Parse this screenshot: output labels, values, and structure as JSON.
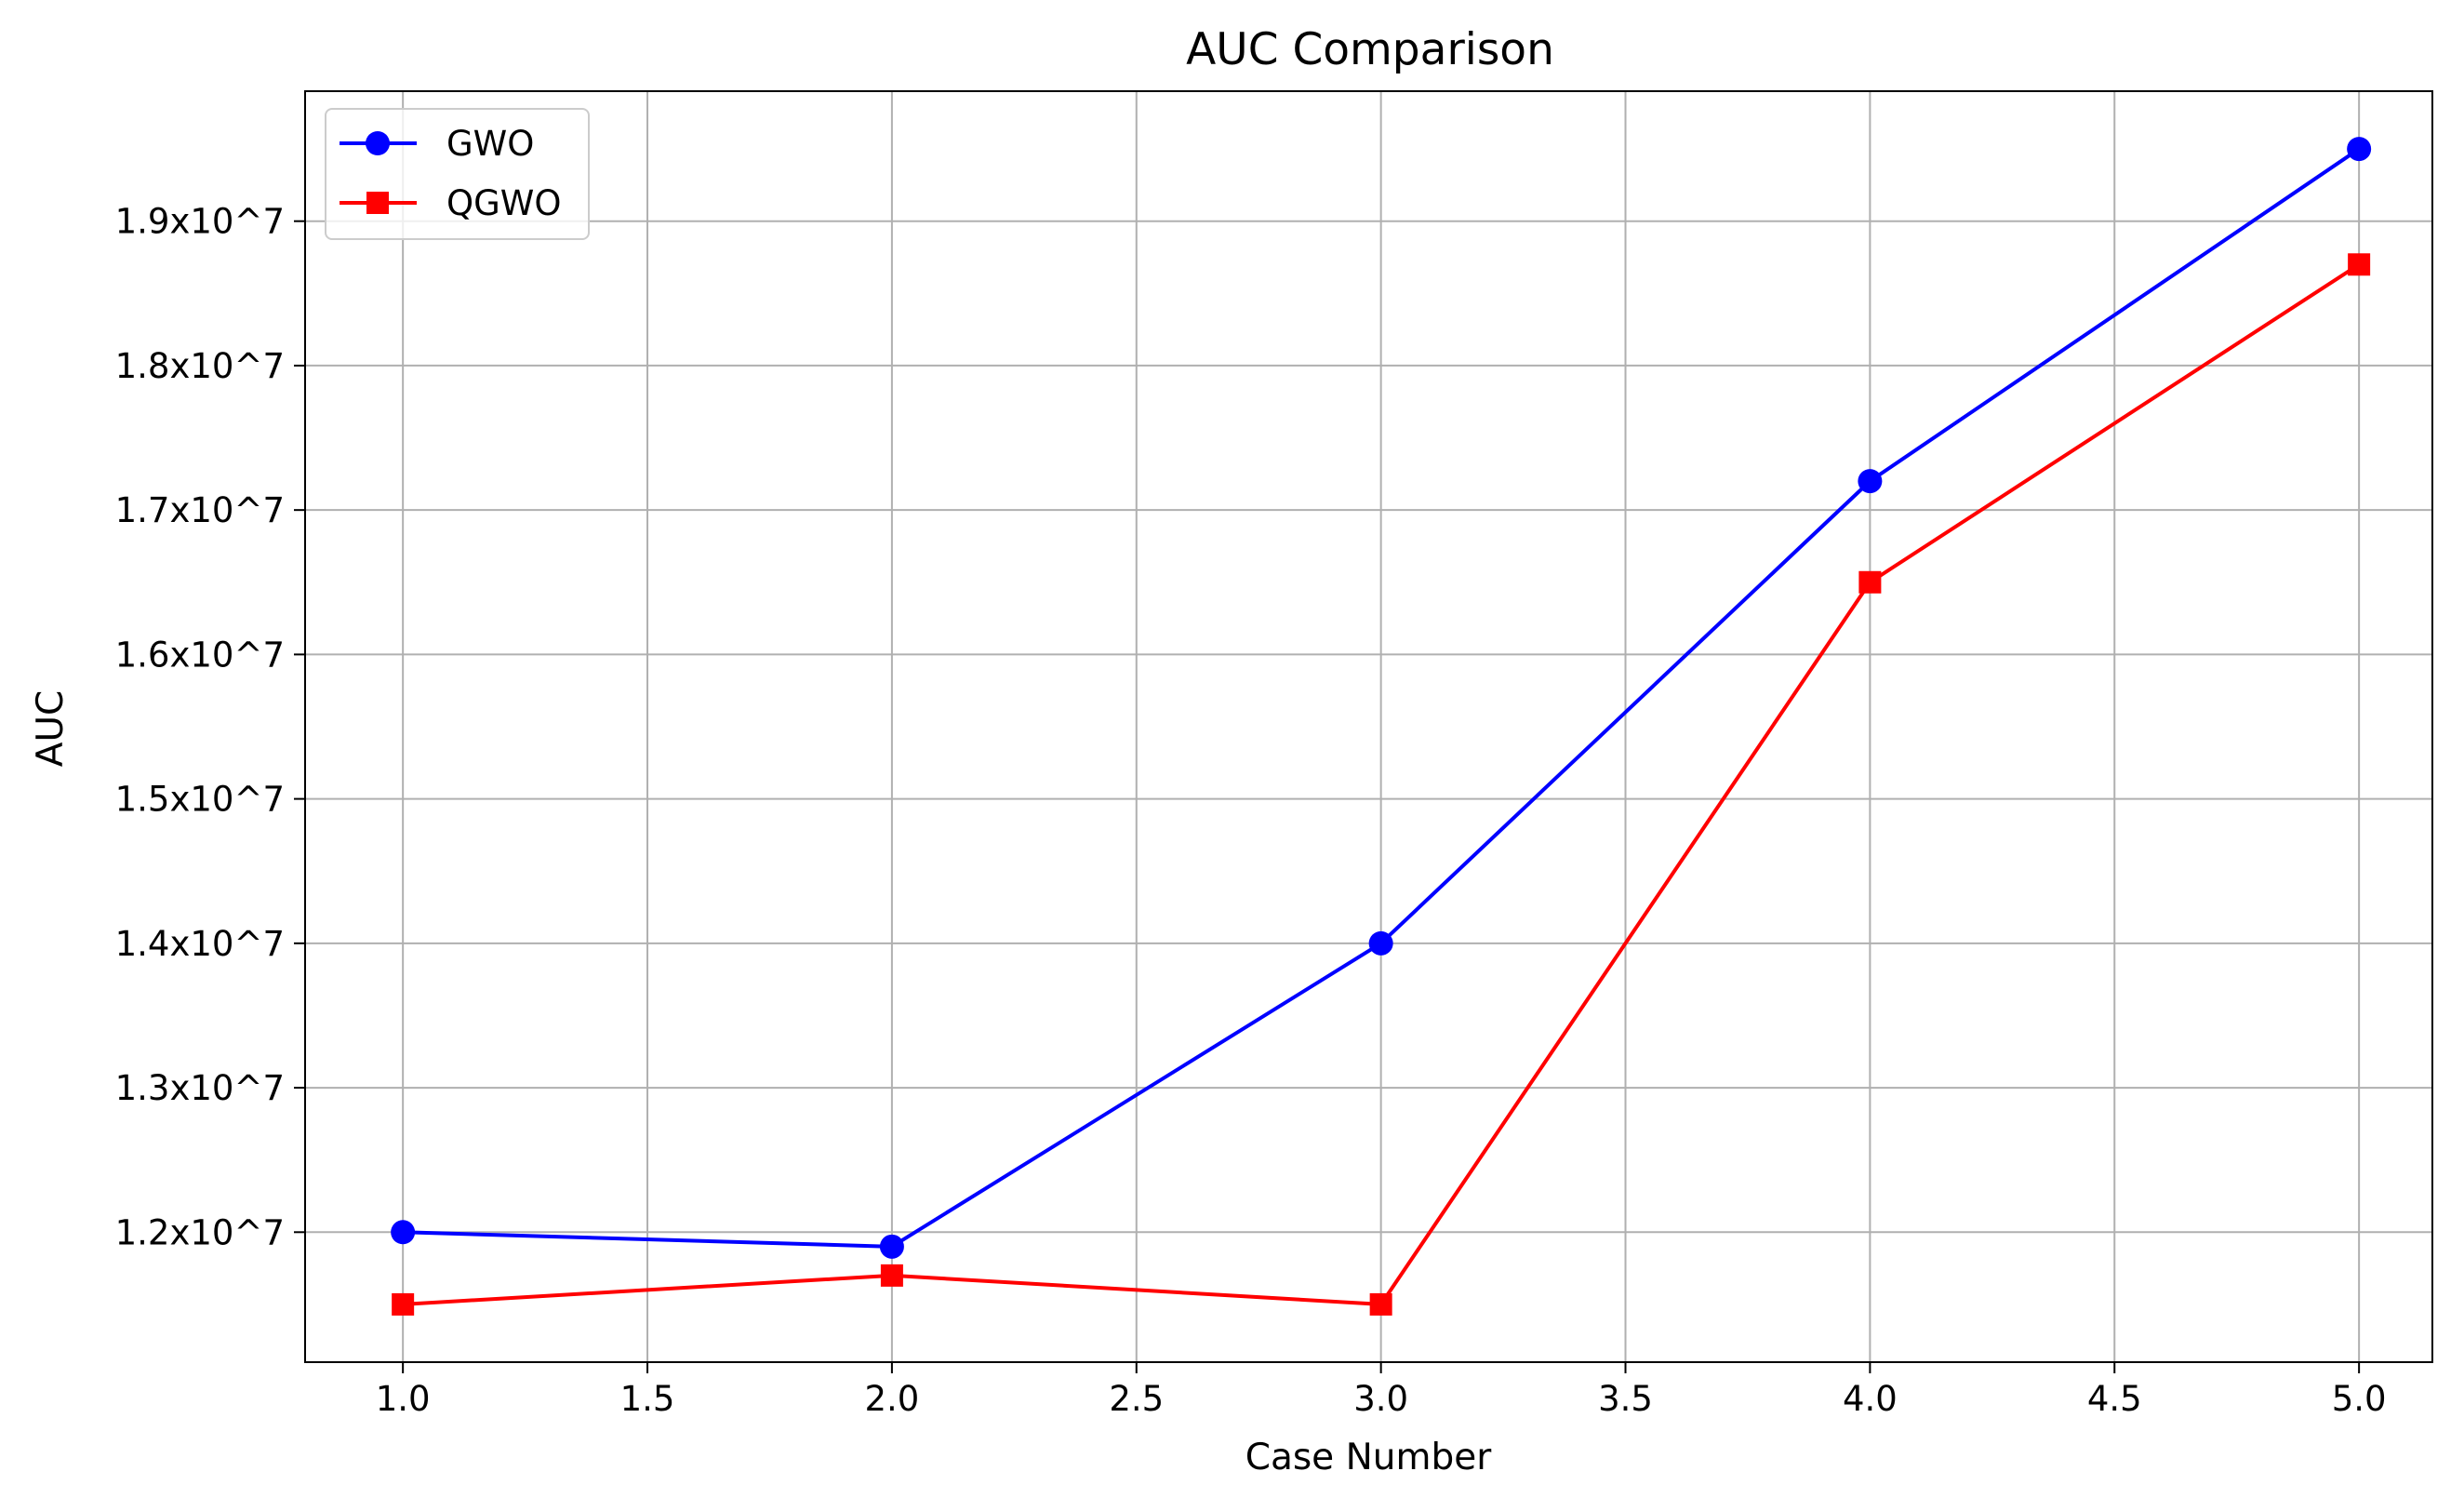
{
  "chart_data": {
    "type": "line",
    "title": "AUC Comparison",
    "xlabel": "Case Number",
    "ylabel": "AUC",
    "xlim": [
      0.8,
      5.15
    ],
    "ylim": [
      11100000,
      19900000
    ],
    "xticks": [
      1.0,
      1.5,
      2.0,
      2.5,
      3.0,
      3.5,
      4.0,
      4.5,
      5.0
    ],
    "xtick_labels": [
      "1.0",
      "1.5",
      "2.0",
      "2.5",
      "3.0",
      "3.5",
      "4.0",
      "4.5",
      "5.0"
    ],
    "yticks": [
      12000000,
      13000000,
      14000000,
      15000000,
      16000000,
      17000000,
      18000000,
      19000000
    ],
    "ytick_labels": [
      "1.2x10^7",
      "1.3x10^7",
      "1.4x10^7",
      "1.5x10^7",
      "1.6x10^7",
      "1.7x10^7",
      "1.8x10^7",
      "1.9x10^7"
    ],
    "grid": true,
    "legend_position": "top-left",
    "series": [
      {
        "name": "GWO",
        "color": "#0000ff",
        "marker": "circle",
        "x": [
          1,
          2,
          3,
          4,
          5
        ],
        "y": [
          12000000,
          11900000,
          14000000,
          17200000,
          19500000
        ]
      },
      {
        "name": "QGWO",
        "color": "#ff0000",
        "marker": "square",
        "x": [
          1,
          2,
          3,
          4,
          5
        ],
        "y": [
          11500000,
          11700000,
          11500000,
          16500000,
          18700000
        ]
      }
    ]
  }
}
